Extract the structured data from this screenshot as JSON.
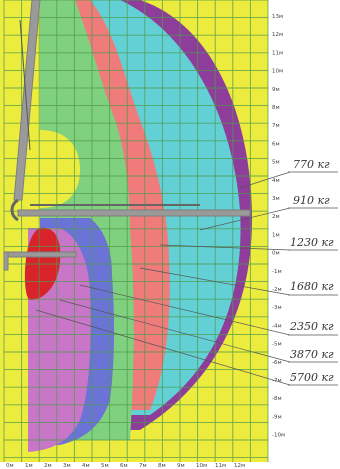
{
  "load_chart": {
    "y_axis_labels": [
      "13м",
      "12м",
      "11м",
      "10м",
      "9м",
      "8м",
      "7м",
      "6м",
      "5м",
      "4м",
      "3м",
      "2м",
      "1м",
      "0м",
      "-1м",
      "-2м",
      "-3м",
      "-4м",
      "-5м",
      "-6м",
      "-7м",
      "-8м",
      "-9м",
      "-10м"
    ],
    "x_axis_labels": [
      "0м",
      "1м",
      "2м",
      "3м",
      "4м",
      "5м",
      "6м",
      "7м",
      "8м",
      "9м",
      "10м",
      "11м",
      "12м"
    ],
    "zones": [
      {
        "load": "770 кг",
        "color": "#8e3d9a"
      },
      {
        "load": "910 кг",
        "color": "#63d0d6"
      },
      {
        "load": "1230 кг",
        "color": "#ef7b7b"
      },
      {
        "load": "1680 кг",
        "color": "#7fd17f"
      },
      {
        "load": "2350 кг",
        "color": "#6b73d6"
      },
      {
        "load": "3870 кг",
        "color": "#c876c8"
      },
      {
        "load": "5700 кг",
        "color": "#d8232a"
      }
    ],
    "background_color": "#ecec3e",
    "grid_color": "#4f9a4a",
    "crane_color": "#8a8a8a"
  }
}
